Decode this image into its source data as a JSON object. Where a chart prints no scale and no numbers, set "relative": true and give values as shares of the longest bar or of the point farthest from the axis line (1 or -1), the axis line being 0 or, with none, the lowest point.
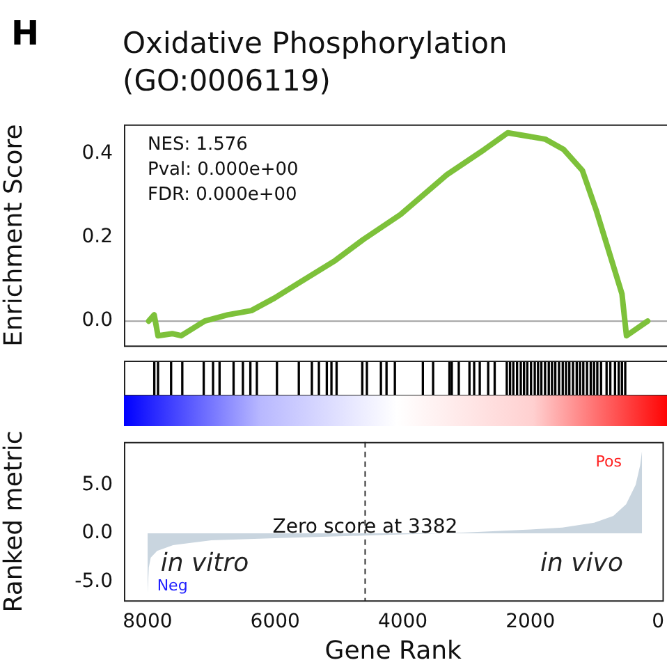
{
  "chart_data": [
    {
      "type": "line",
      "title": "Oxidative Phosphorylation (GO:0006119)",
      "ylabel": "Enrichment Score",
      "annotations": [
        "H",
        "NES: 1.576\nPval: 0.000e+00\nFDR: 0.000e+00"
      ],
      "tick_labels": "y",
      "grid": false,
      "legend": false,
      "marker": "none",
      "line_style": "solid",
      "x": [
        7985,
        7900,
        7840,
        7620,
        7480,
        7115,
        6755,
        6390,
        6030,
        5665,
        5085,
        4650,
        4070,
        3350,
        2770,
        2405,
        1825,
        1535,
        1245,
        1030,
        810,
        630,
        560,
        230
      ],
      "series": [
        {
          "color": "#7dc13a",
          "values": [
            0.0,
            0.015,
            -0.035,
            -0.03,
            -0.035,
            0.0,
            0.015,
            0.025,
            0.055,
            0.09,
            0.145,
            0.195,
            0.255,
            0.35,
            0.41,
            0.45,
            0.435,
            0.41,
            0.36,
            0.265,
            0.155,
            0.065,
            -0.035,
            0.0
          ]
        }
      ],
      "xlim": [
        8370,
        -70
      ],
      "ylim": [
        -0.06,
        0.47
      ],
      "yticks": [
        {
          "value": 0,
          "label": "0.0"
        },
        {
          "value": 0.2,
          "label": "0.2"
        },
        {
          "value": 0.4,
          "label": "0.4"
        }
      ],
      "ref_lines": [
        {
          "axis": "y",
          "value": 0,
          "color": "#a0a0a0"
        }
      ]
    },
    {
      "type": "bar",
      "relative": true,
      "tick_labels": false,
      "xlim": [
        8370,
        -70
      ],
      "x": [
        7898,
        7840,
        7637,
        7463,
        7130,
        6985,
        6884,
        6666,
        6521,
        6405,
        6304,
        5992,
        5652,
        5449,
        5340,
        5217,
        5145,
        5065,
        4666,
        4594,
        4376,
        4289,
        4159,
        3724,
        3565,
        3311,
        3275,
        3166,
        3000,
        2927,
        2840,
        2709,
        2608,
        2420,
        2369,
        2318,
        2260,
        2202,
        2152,
        2101,
        2043,
        1985,
        1934,
        1883,
        1825,
        1767,
        1717,
        1666,
        1608,
        1550,
        1499,
        1448,
        1391,
        1333,
        1282,
        1231,
        1173,
        1115,
        1064,
        1013,
        955,
        869,
        811,
        738,
        680,
        630,
        579
      ],
      "series": [
        {
          "color": "#000000",
          "values": [
            1,
            1,
            1,
            1,
            1,
            1,
            1,
            1,
            1,
            1,
            1,
            1,
            1,
            1,
            1,
            1,
            1,
            1,
            1,
            1,
            1,
            1,
            1,
            1,
            1,
            1,
            1,
            1,
            1,
            1,
            1,
            1,
            1,
            1,
            1,
            1,
            1,
            1,
            1,
            1,
            1,
            1,
            1,
            1,
            1,
            1,
            1,
            1,
            1,
            1,
            1,
            1,
            1,
            1,
            1,
            1,
            1,
            1,
            1,
            1,
            1,
            1,
            1,
            1,
            1,
            1,
            1
          ]
        }
      ]
    },
    {
      "type": "area",
      "xlabel": "Gene Rank",
      "ylabel": "Ranked metric",
      "grid": false,
      "legend": false,
      "x": [
        8000,
        7980,
        7950,
        7850,
        7600,
        7000,
        6000,
        5000,
        4000,
        3382,
        3000,
        2000,
        1500,
        1000,
        700,
        500,
        350,
        280,
        250
      ],
      "series": [
        {
          "color": "#c9d5df",
          "values": [
            -6.3,
            -3.5,
            -2.5,
            -1.8,
            -1.2,
            -0.7,
            -0.5,
            -0.3,
            -0.1,
            0,
            0.1,
            0.4,
            0.6,
            1.1,
            1.8,
            3,
            5,
            7,
            8.5
          ]
        }
      ],
      "xlim": [
        8370,
        -70
      ],
      "ylim": [
        -6.95,
        9.4
      ],
      "xticks": [
        8000,
        6000,
        4000,
        2000,
        0
      ],
      "yticks": [
        {
          "value": -5,
          "label": "-5.0"
        },
        {
          "value": 0,
          "label": "0.0"
        },
        {
          "value": 5,
          "label": "5.0"
        }
      ],
      "ref_lines": [
        {
          "axis": "x",
          "value": 4590,
          "color": "#333333",
          "line_style": "dashed"
        }
      ],
      "annotations": [
        {
          "text": "Zero score at 3382",
          "x": 4590,
          "y": 0.6
        },
        "in vitro",
        "in vivo",
        "Pos",
        "Neg"
      ]
    }
  ]
}
